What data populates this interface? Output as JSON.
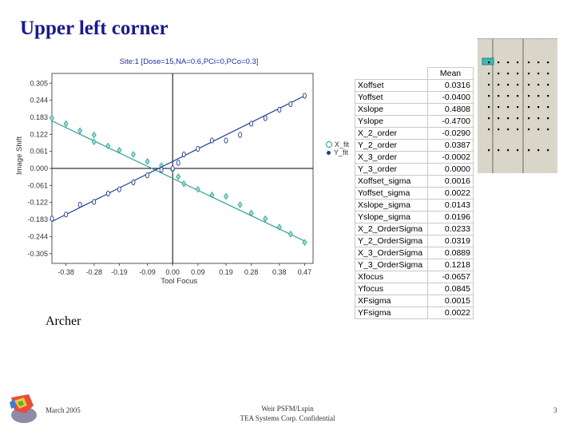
{
  "slide": {
    "title": "Upper left corner",
    "caption": "Archer",
    "footer_date": "March 2005",
    "footer_center_line1": "Weir PSFM/Lspin",
    "footer_center_line2": "TEA Systems Corp. Confidential",
    "page_number": "3"
  },
  "chart_data": {
    "type": "scatter",
    "title": "Site:1 [Dose=15,NA=0.6,PCi=0,PCo=0.3]",
    "xlabel": "Tool Focus",
    "ylabel": "Image Shift",
    "xlim": [
      -0.43,
      0.5
    ],
    "ylim": [
      -0.34,
      0.34
    ],
    "x_ticks": [
      "-0.38",
      "-0.28",
      "-0.19",
      "-0.09",
      "0.00",
      "0.09",
      "0.19",
      "0.28",
      "0.38",
      "0.47"
    ],
    "y_ticks": [
      "0.305",
      "0.244",
      "0.183",
      "0.122",
      "0.061",
      "0.000",
      "-0.061",
      "-0.122",
      "-0.183",
      "-0.244",
      "-0.305"
    ],
    "grid": false,
    "legend_position": "right",
    "series": [
      {
        "name": "X_fit",
        "color": "#2a9d8f",
        "fit": [
          [
            -0.43,
            0.17
          ],
          [
            0.47,
            -0.26
          ]
        ],
        "x": [
          -0.43,
          -0.38,
          -0.33,
          -0.28,
          -0.28,
          -0.23,
          -0.19,
          -0.14,
          -0.09,
          -0.04,
          0.0,
          0.02,
          0.04,
          0.09,
          0.14,
          0.19,
          0.24,
          0.28,
          0.33,
          0.38,
          0.42,
          0.47
        ],
        "y": [
          0.18,
          0.16,
          0.135,
          0.12,
          0.095,
          0.08,
          0.065,
          0.05,
          0.025,
          0.01,
          -0.005,
          -0.03,
          -0.055,
          -0.075,
          -0.095,
          -0.1,
          -0.13,
          -0.16,
          -0.18,
          -0.21,
          -0.235,
          -0.265
        ]
      },
      {
        "name": "Y_fit",
        "color": "#1f3f8f",
        "fit": [
          [
            -0.43,
            -0.19
          ],
          [
            0.47,
            0.26
          ]
        ],
        "x": [
          -0.43,
          -0.38,
          -0.33,
          -0.28,
          -0.23,
          -0.19,
          -0.14,
          -0.09,
          -0.04,
          0.0,
          0.02,
          0.04,
          0.09,
          0.14,
          0.19,
          0.24,
          0.28,
          0.33,
          0.38,
          0.42,
          0.47
        ],
        "y": [
          -0.18,
          -0.165,
          -0.13,
          -0.12,
          -0.09,
          -0.075,
          -0.05,
          -0.025,
          -0.005,
          0.0,
          0.02,
          0.05,
          0.07,
          0.1,
          0.1,
          0.12,
          0.16,
          0.18,
          0.21,
          0.23,
          0.26
        ]
      }
    ]
  },
  "mean_table": {
    "header": "Mean",
    "rows": [
      {
        "label": "Xoffset",
        "value": "0.0316"
      },
      {
        "label": "Yoffset",
        "value": "-0.0400"
      },
      {
        "label": "Xslope",
        "value": "0.4808"
      },
      {
        "label": "Yslope",
        "value": "-0.4700"
      },
      {
        "label": "X_2_order",
        "value": "-0.0290"
      },
      {
        "label": "Y_2_order",
        "value": "0.0387"
      },
      {
        "label": "X_3_order",
        "value": "-0.0002"
      },
      {
        "label": "Y_3_order",
        "value": "0.0000"
      },
      {
        "label": "Xoffset_sigma",
        "value": "0.0016"
      },
      {
        "label": "Yoffset_sigma",
        "value": "0.0022"
      },
      {
        "label": "Xslope_sigma",
        "value": "0.0143"
      },
      {
        "label": "Yslope_sigma",
        "value": "0.0196"
      },
      {
        "label": "X_2_OrderSigma",
        "value": "0.0233"
      },
      {
        "label": "Y_2_OrderSigma",
        "value": "0.0319"
      },
      {
        "label": "X_3_OrderSigma",
        "value": "0.0889"
      },
      {
        "label": "Y_3_OrderSigma",
        "value": "0.1218"
      },
      {
        "label": "Xfocus",
        "value": "-0.0657"
      },
      {
        "label": "Yfocus",
        "value": "0.0845"
      },
      {
        "label": "XFsigma",
        "value": "0.0015"
      },
      {
        "label": "YFsigma",
        "value": "0.0022"
      }
    ]
  },
  "site_grid": {
    "background": "#d9d5c9",
    "marker_color": "#3fb8b0",
    "dot_color": "#000000"
  }
}
